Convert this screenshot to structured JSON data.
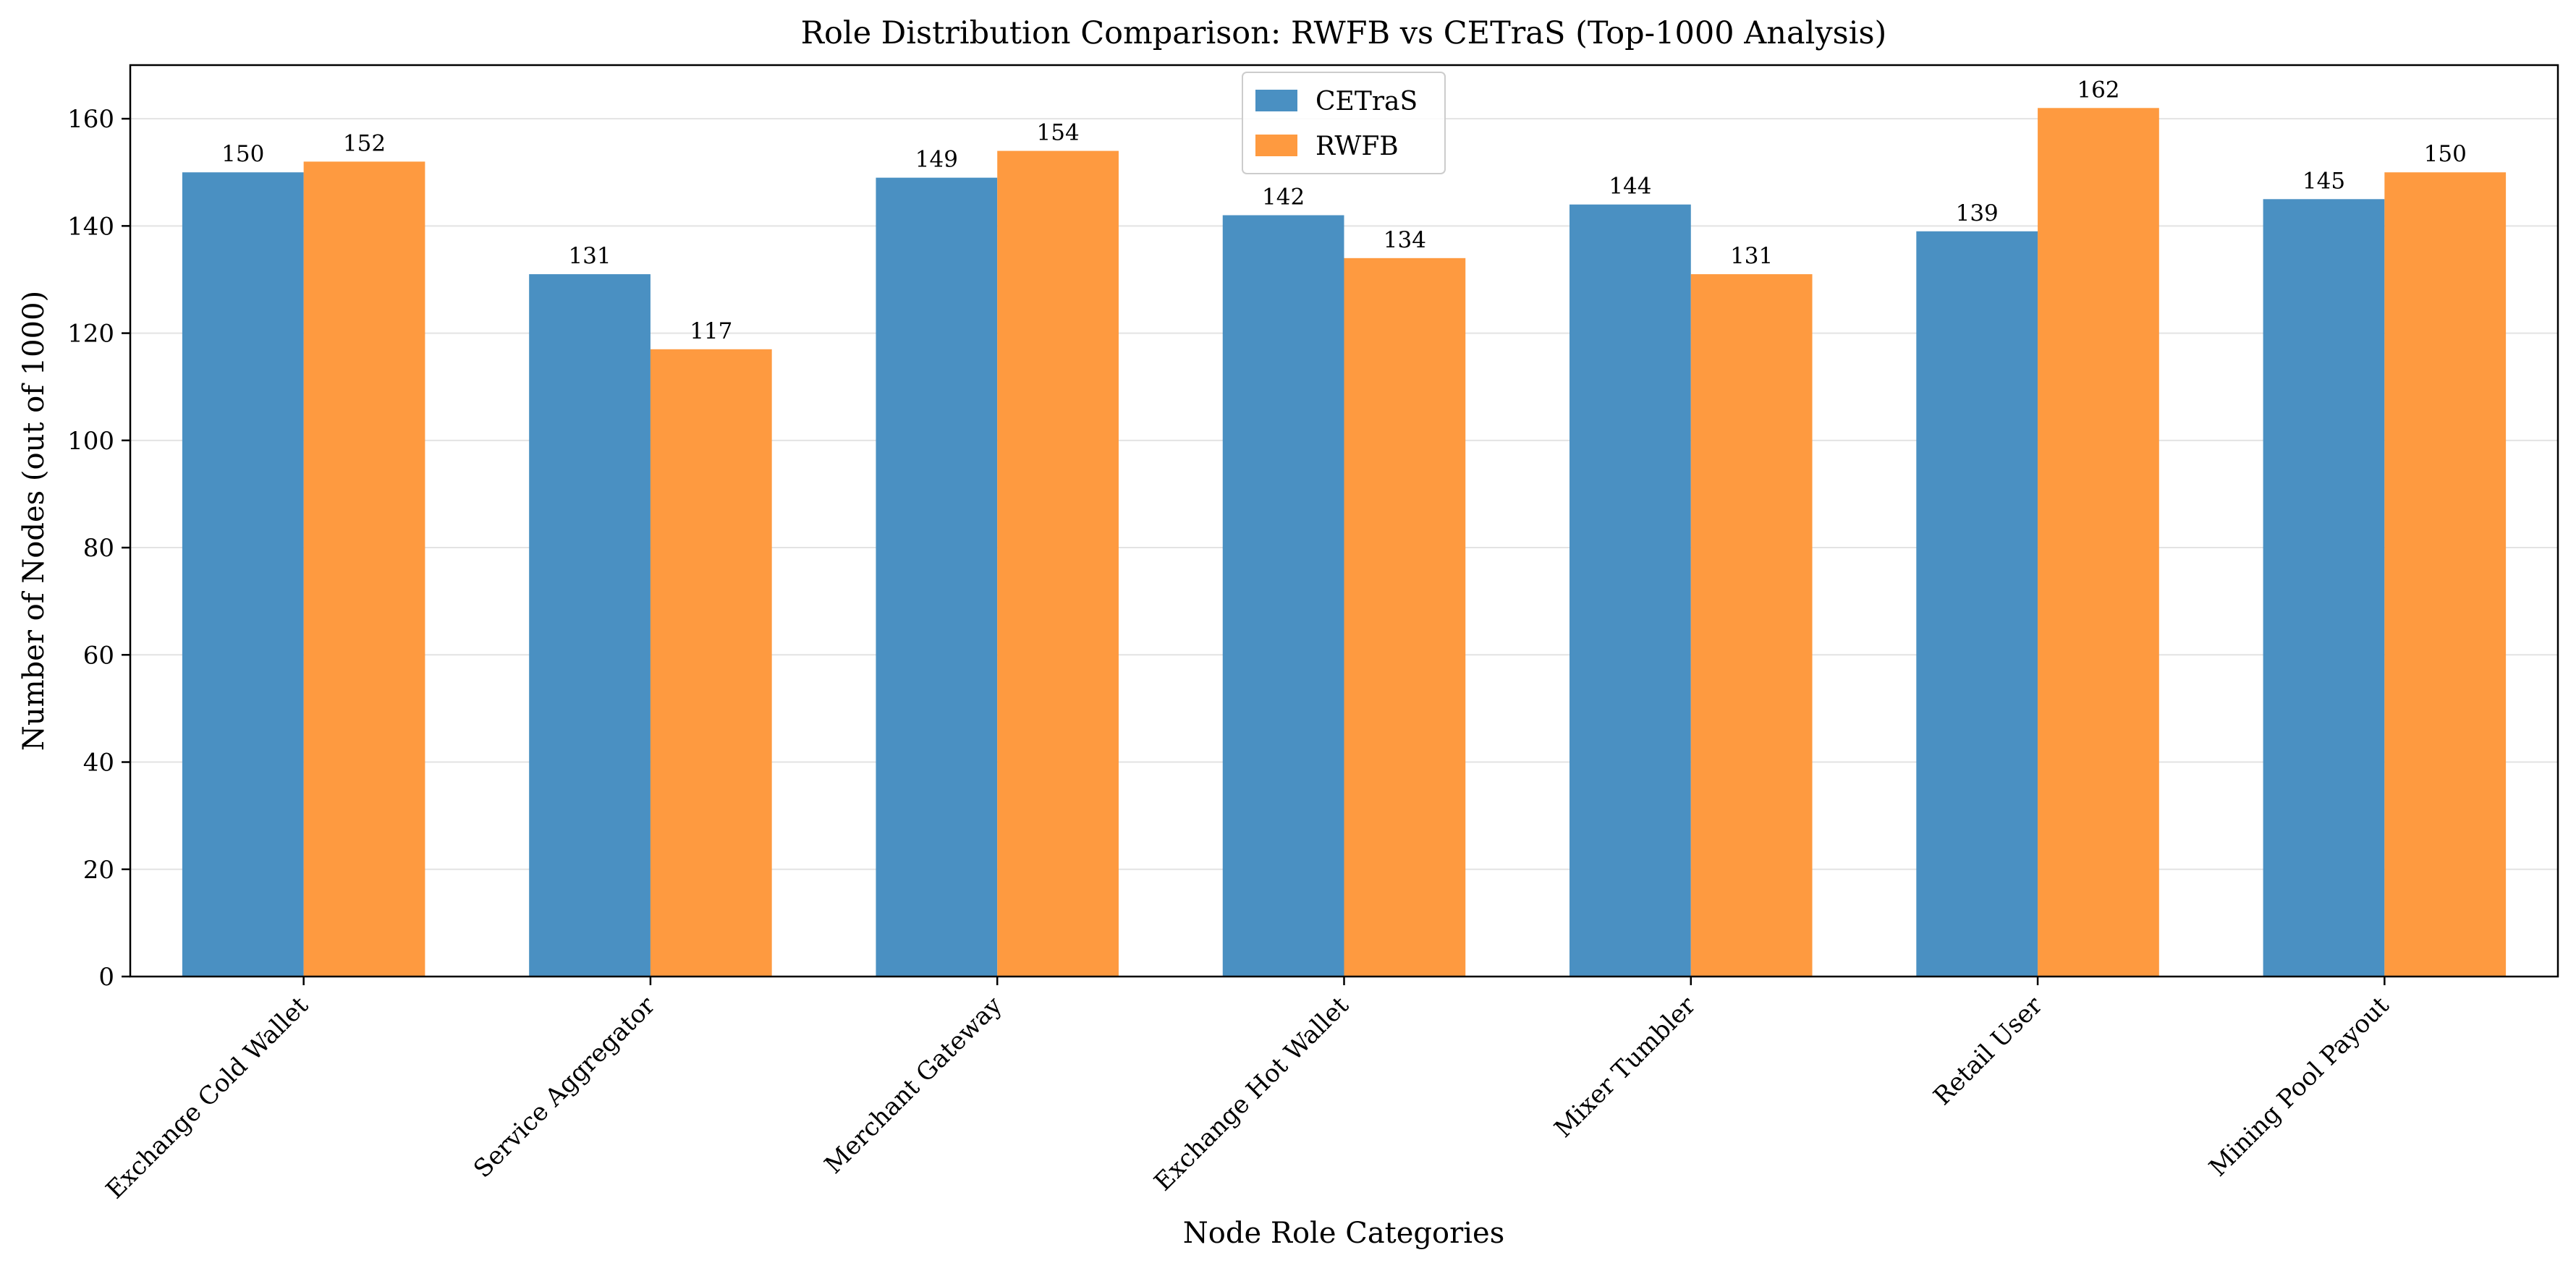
{
  "chart_data": {
    "type": "bar",
    "title": "Role Distribution Comparison: RWFB vs CETraS (Top-1000 Analysis)",
    "xlabel": "Node Role Categories",
    "ylabel": "Number of Nodes (out of 1000)",
    "categories": [
      "Exchange Cold Wallet",
      "Service Aggregator",
      "Merchant Gateway",
      "Exchange Hot Wallet",
      "Mixer Tumbler",
      "Retail User",
      "Mining Pool Payout"
    ],
    "series": [
      {
        "name": "CETraS",
        "color": "#4a90c2",
        "values": [
          150,
          131,
          149,
          142,
          144,
          139,
          145
        ]
      },
      {
        "name": "RWFB",
        "color": "#fe9a40",
        "values": [
          152,
          117,
          154,
          134,
          131,
          162,
          150
        ]
      }
    ],
    "ylim": [
      0,
      170
    ],
    "yticks": [
      0,
      20,
      40,
      60,
      80,
      100,
      120,
      140,
      160
    ],
    "grid": "horizontal",
    "legend_position": "top-center"
  }
}
